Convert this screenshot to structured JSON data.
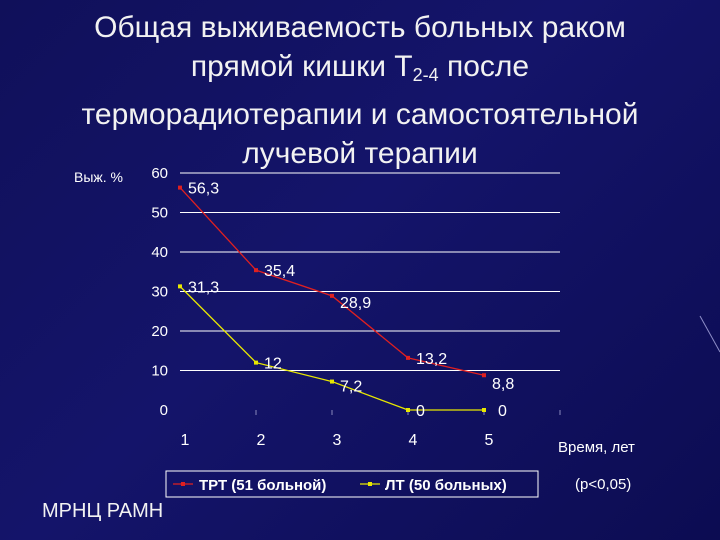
{
  "slide": {
    "title_line1": "Общая выживаемость больных раком",
    "title_line2_pre": "прямой кишки Т",
    "title_line2_sub": "2-4",
    "title_line2_post": " после",
    "title_line3": "терморадиотерапии  и самостоятельной",
    "title_line4": "лучевой терапии",
    "organization": "МРНЦ РАМН"
  },
  "chart_data": {
    "type": "line",
    "ylabel": "Выж. %",
    "xlabel": "Время, лет",
    "note": "(p<0,05)",
    "categories": [
      "1",
      "2",
      "3",
      "4",
      "5"
    ],
    "y_ticks": [
      "0",
      "10",
      "20",
      "30",
      "40",
      "50",
      "60"
    ],
    "ylim": [
      0,
      60
    ],
    "grid": true,
    "legend_position": "bottom",
    "series": [
      {
        "name": "ТРТ (51 больной)",
        "color": "#e02020",
        "values": [
          56.3,
          35.4,
          28.9,
          13.2,
          8.8
        ],
        "labels": [
          "56,3",
          "35,4",
          "28,9",
          "13,2",
          "8,8"
        ]
      },
      {
        "name": "ЛТ (50 больных)",
        "color": "#e8e800",
        "values": [
          31.3,
          12,
          7.2,
          0,
          0
        ],
        "labels": [
          "31,3",
          "12",
          "7,2",
          "0",
          "0"
        ]
      }
    ]
  }
}
